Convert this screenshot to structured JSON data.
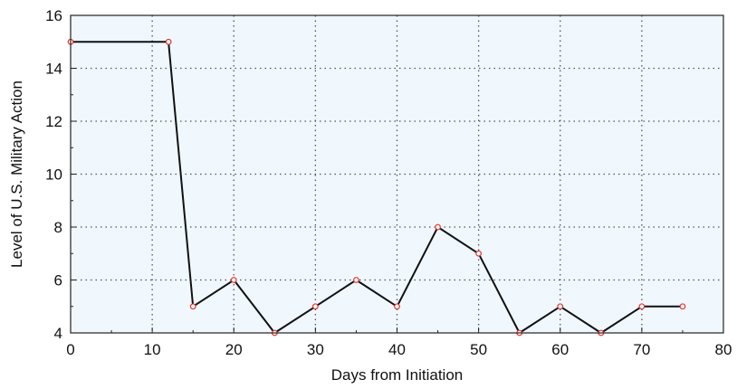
{
  "chart_data": {
    "type": "line",
    "title": "",
    "xlabel": "Days from Initiation",
    "ylabel": "Level of U.S. Military Action",
    "xlim": [
      0,
      80
    ],
    "ylim": [
      4,
      16
    ],
    "xticks": [
      0,
      10,
      20,
      30,
      40,
      50,
      60,
      70,
      80
    ],
    "yticks": [
      4,
      6,
      8,
      10,
      12,
      14,
      16
    ],
    "grid": true,
    "series": [
      {
        "x": [
          0,
          12,
          15,
          20,
          25,
          30,
          35,
          40,
          45,
          50,
          55,
          60,
          65,
          70,
          75
        ],
        "y": [
          15,
          15,
          5,
          6,
          4,
          5,
          6,
          5,
          8,
          7,
          4,
          5,
          4,
          5,
          5
        ]
      }
    ],
    "colors": {
      "plot_background": "#f0f7fd",
      "line": "#111111",
      "marker": "#e0342f",
      "grid": "#555555"
    }
  }
}
